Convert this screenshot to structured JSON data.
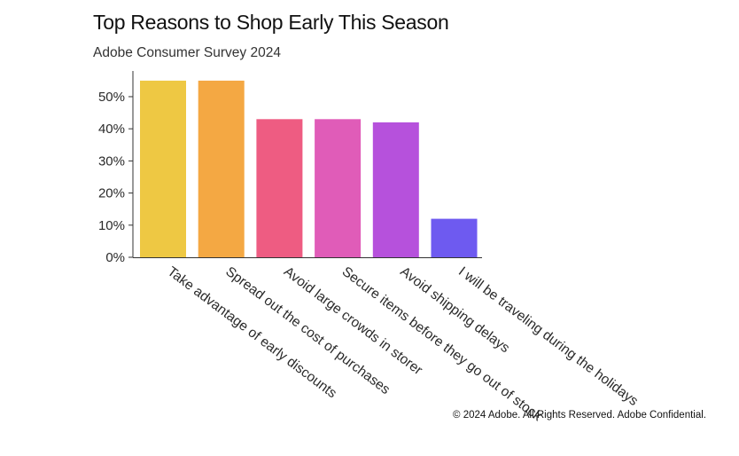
{
  "title": "Top Reasons to Shop Early This Season",
  "subtitle": "Adobe Consumer Survey 2024",
  "footer": "© 2024 Adobe. All Rights Reserved. Adobe Confidential.",
  "chart_data": {
    "type": "bar",
    "title": "Top Reasons to Shop Early This Season",
    "subtitle": "Adobe Consumer Survey 2024",
    "xlabel": "",
    "ylabel": "",
    "categories": [
      "Take advantage of early discounts",
      "Spread out the cost of purchases",
      "Avoid large crowds in storer",
      "Secure items before they go out of stock",
      "Avoid shipping delays",
      "I will be traveling during the holidays"
    ],
    "values": [
      55,
      55,
      43,
      43,
      42,
      12
    ],
    "value_unit": "%",
    "ylim": [
      0,
      58
    ],
    "yticks": [
      0,
      10,
      20,
      30,
      40,
      50
    ],
    "ytick_labels": [
      "0%",
      "10%",
      "20%",
      "30%",
      "40%",
      "50%"
    ],
    "bar_colors": [
      "#EEC843",
      "#F4A843",
      "#EE5C82",
      "#E05CB8",
      "#B651DC",
      "#6E5AF0"
    ],
    "grid": false,
    "legend": "none"
  }
}
